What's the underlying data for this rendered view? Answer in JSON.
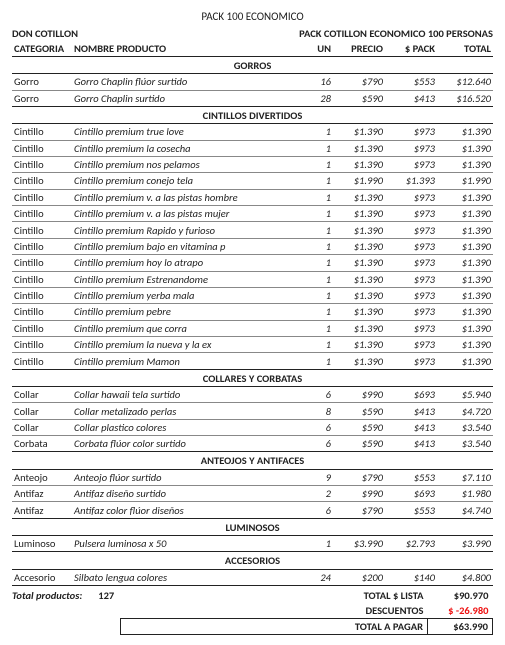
{
  "title": "PACK 100 ECONOMICO",
  "brand": "DON COTILLON",
  "subtitle": "PACK COTILLON ECONOMICO 100 PERSONAS",
  "columns": {
    "categoria": "CATEGORIA",
    "nombre": "NOMBRE PRODUCTO",
    "un": "UN",
    "precio": "PRECIO",
    "pack": "$ PACK",
    "total": "TOTAL"
  },
  "sections": [
    {
      "title": "GORROS",
      "rows": [
        {
          "cat": "Gorro",
          "name": "Gorro Chaplin flúor surtido",
          "un": "16",
          "precio": "$790",
          "pack": "$553",
          "total": "$12.640"
        },
        {
          "cat": "Gorro",
          "name": "Gorro Chaplin surtido",
          "un": "28",
          "precio": "$590",
          "pack": "$413",
          "total": "$16.520"
        }
      ]
    },
    {
      "title": "CINTILLOS DIVERTIDOS",
      "rows": [
        {
          "cat": "Cintillo",
          "name": "Cintillo premium true love",
          "un": "1",
          "precio": "$1.390",
          "pack": "$973",
          "total": "$1.390"
        },
        {
          "cat": "Cintillo",
          "name": "Cintillo premium la cosecha",
          "un": "1",
          "precio": "$1.390",
          "pack": "$973",
          "total": "$1.390"
        },
        {
          "cat": "Cintillo",
          "name": "Cintillo premium nos pelamos",
          "un": "1",
          "precio": "$1.390",
          "pack": "$973",
          "total": "$1.390"
        },
        {
          "cat": "Cintillo",
          "name": "Cintillo premium conejo tela",
          "un": "1",
          "precio": "$1.990",
          "pack": "$1.393",
          "total": "$1.990"
        },
        {
          "cat": "Cintillo",
          "name": "Cintillo premium v. a las pistas hombre",
          "un": "1",
          "precio": "$1.390",
          "pack": "$973",
          "total": "$1.390"
        },
        {
          "cat": "Cintillo",
          "name": "Cintillo premium v. a las pistas mujer",
          "un": "1",
          "precio": "$1.390",
          "pack": "$973",
          "total": "$1.390"
        },
        {
          "cat": "Cintillo",
          "name": "Cintillo premium Rapido y furioso",
          "un": "1",
          "precio": "$1.390",
          "pack": "$973",
          "total": "$1.390"
        },
        {
          "cat": "Cintillo",
          "name": "Cintillo premium bajo en vitamina p",
          "un": "1",
          "precio": "$1.390",
          "pack": "$973",
          "total": "$1.390"
        },
        {
          "cat": "Cintillo",
          "name": "Cintillo premium hoy lo atrapo",
          "un": "1",
          "precio": "$1.390",
          "pack": "$973",
          "total": "$1.390"
        },
        {
          "cat": "Cintillo",
          "name": "Cintillo premium Estrenandome",
          "un": "1",
          "precio": "$1.390",
          "pack": "$973",
          "total": "$1.390"
        },
        {
          "cat": "Cintillo",
          "name": "Cintillo premium yerba mala",
          "un": "1",
          "precio": "$1.390",
          "pack": "$973",
          "total": "$1.390"
        },
        {
          "cat": "Cintillo",
          "name": "Cintillo premium pebre",
          "un": "1",
          "precio": "$1.390",
          "pack": "$973",
          "total": "$1.390"
        },
        {
          "cat": "Cintillo",
          "name": "Cintillo premium que corra",
          "un": "1",
          "precio": "$1.390",
          "pack": "$973",
          "total": "$1.390"
        },
        {
          "cat": "Cintillo",
          "name": "Cintillo premium la nueva y la ex",
          "un": "1",
          "precio": "$1.390",
          "pack": "$973",
          "total": "$1.390"
        },
        {
          "cat": "Cintillo",
          "name": "Cintillo premium Mamon",
          "un": "1",
          "precio": "$1.390",
          "pack": "$973",
          "total": "$1.390"
        }
      ]
    },
    {
      "title": "COLLARES Y CORBATAS",
      "rows": [
        {
          "cat": "Collar",
          "name": "Collar hawaii tela surtido",
          "un": "6",
          "precio": "$990",
          "pack": "$693",
          "total": "$5.940"
        },
        {
          "cat": "Collar",
          "name": "Collar metalizado perlas",
          "un": "8",
          "precio": "$590",
          "pack": "$413",
          "total": "$4.720"
        },
        {
          "cat": "Collar",
          "name": "Collar plastico colores",
          "un": "6",
          "precio": "$590",
          "pack": "$413",
          "total": "$3.540"
        },
        {
          "cat": "Corbata",
          "name": "Corbata flúor color surtido",
          "un": "6",
          "precio": "$590",
          "pack": "$413",
          "total": "$3.540"
        }
      ]
    },
    {
      "title": "ANTEOJOS Y ANTIFACES",
      "rows": [
        {
          "cat": "Anteojo",
          "name": "Anteojo flúor surtido",
          "un": "9",
          "precio": "$790",
          "pack": "$553",
          "total": "$7.110"
        },
        {
          "cat": "Antifaz",
          "name": "Antifaz diseño surtido",
          "un": "2",
          "precio": "$990",
          "pack": "$693",
          "total": "$1.980"
        },
        {
          "cat": "Antifaz",
          "name": "Antifaz color flúor diseños",
          "un": "6",
          "precio": "$790",
          "pack": "$553",
          "total": "$4.740"
        }
      ]
    },
    {
      "title": "LUMINOSOS",
      "rows": [
        {
          "cat": "Luminoso",
          "name": "Pulsera luminosa x 50",
          "un": "1",
          "precio": "$3.990",
          "pack": "$2.793",
          "total": "$3.990"
        }
      ]
    },
    {
      "title": "ACCESORIOS",
      "rows": [
        {
          "cat": "Accesorio",
          "name": "Silbato lengua colores",
          "un": "24",
          "precio": "$200",
          "pack": "$140",
          "total": "$4.800"
        }
      ]
    }
  ],
  "summary": {
    "total_productos_label": "Total productos:",
    "total_productos": "127",
    "lista_label": "TOTAL $ LISTA",
    "lista": "$90.970",
    "descuentos_label": "DESCUENTOS",
    "descuentos": "$ -26.980",
    "pagar_label": "TOTAL A PAGAR",
    "pagar": "$63.990"
  }
}
